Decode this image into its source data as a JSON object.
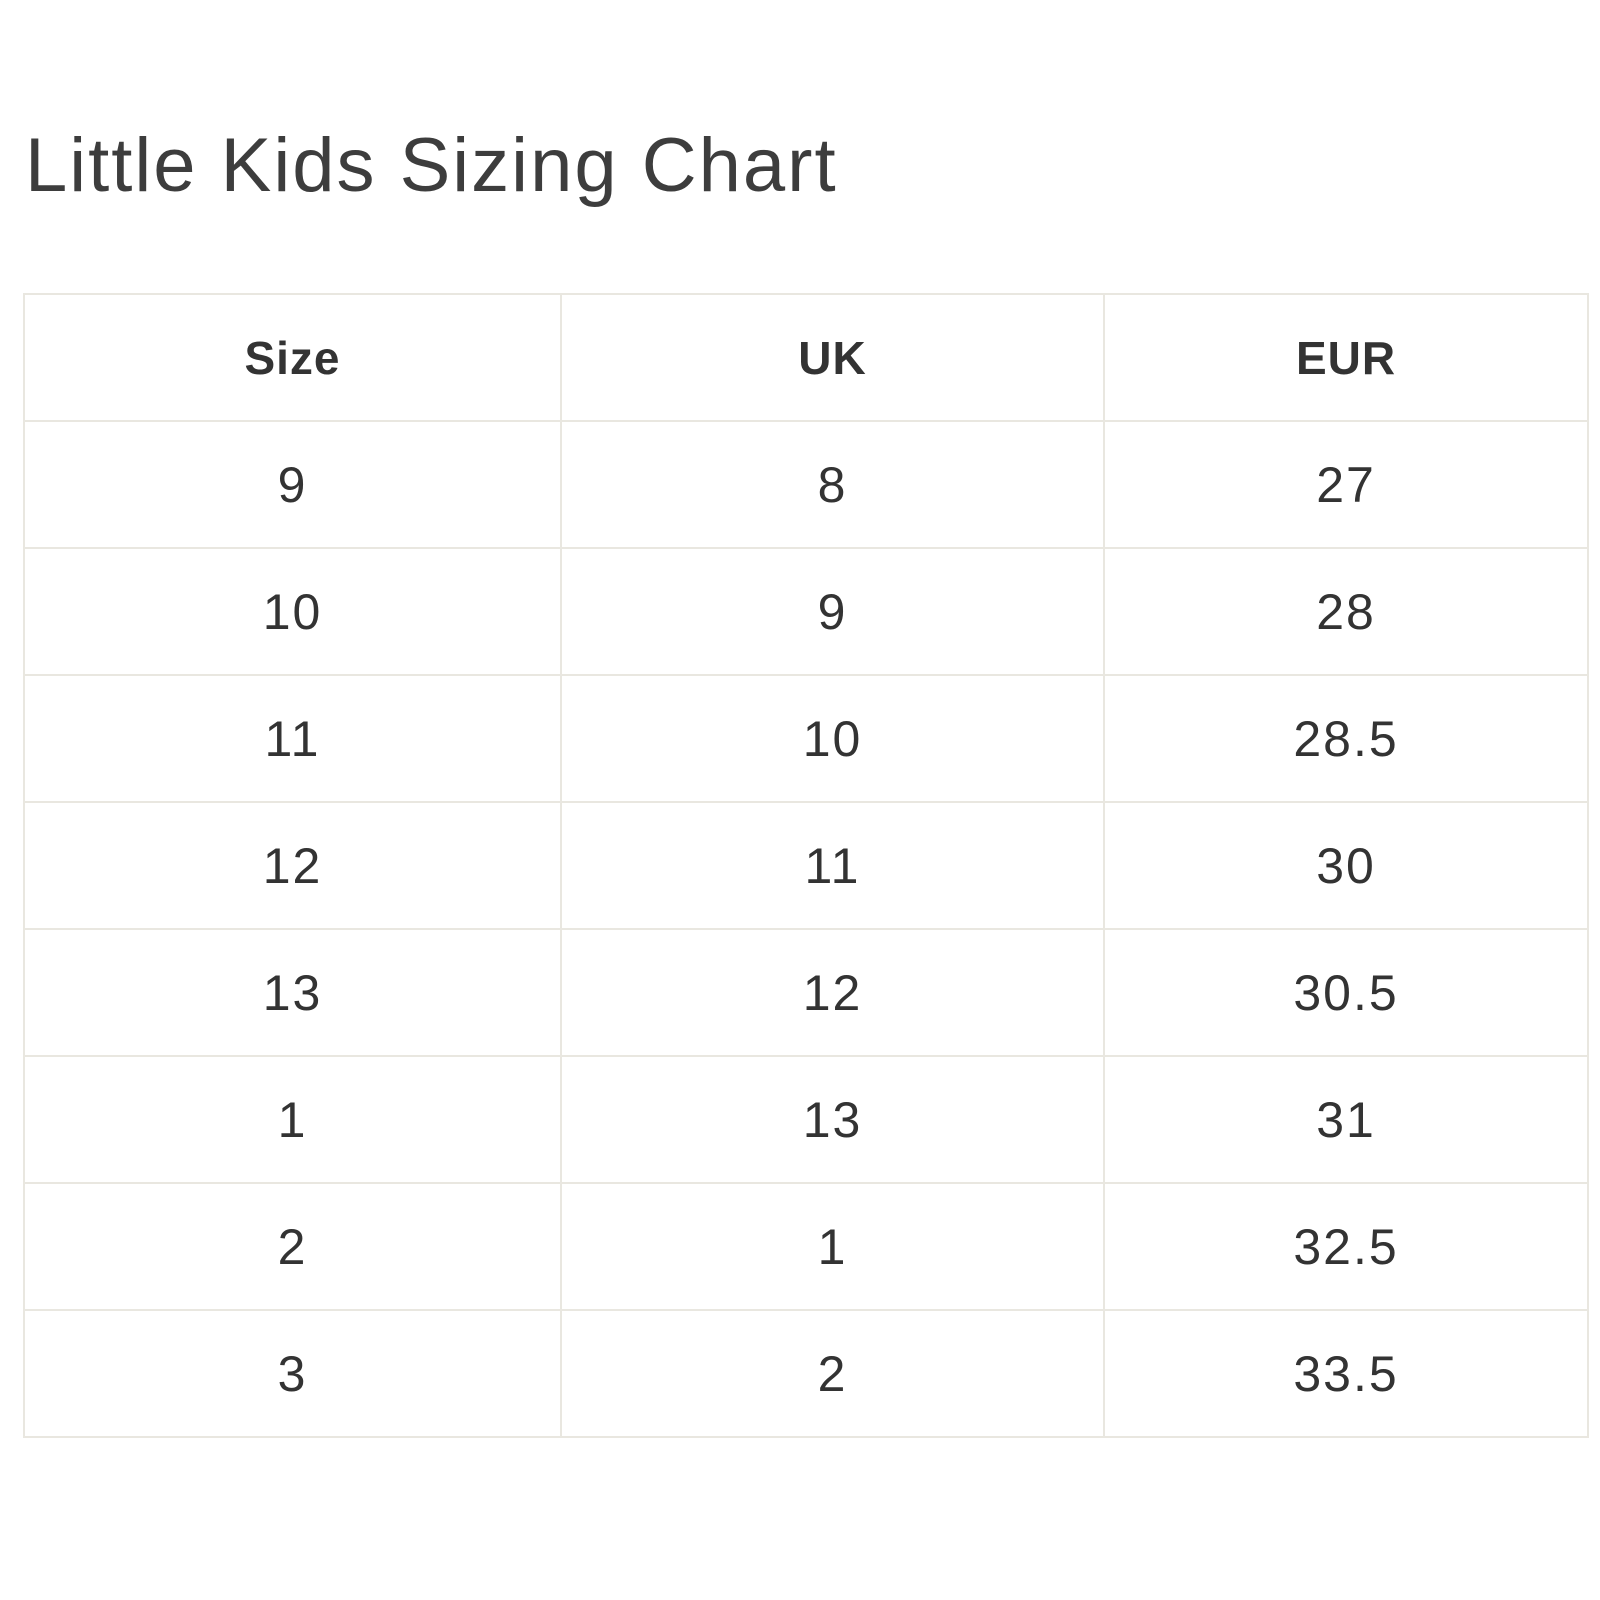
{
  "page": {
    "title": "Little Kids Sizing Chart",
    "background_color": "#ffffff",
    "text_color": "#333333",
    "title_color": "#3d3d3d",
    "border_color": "#e9e7e0"
  },
  "table": {
    "headers": [
      "Size",
      "UK",
      "EUR"
    ],
    "rows": [
      [
        "9",
        "8",
        "27"
      ],
      [
        "10",
        "9",
        "28"
      ],
      [
        "11",
        "10",
        "28.5"
      ],
      [
        "12",
        "11",
        "30"
      ],
      [
        "13",
        "12",
        "30.5"
      ],
      [
        "1",
        "13",
        "31"
      ],
      [
        "2",
        "1",
        "32.5"
      ],
      [
        "3",
        "2",
        "33.5"
      ]
    ]
  },
  "chart_data": {
    "type": "table",
    "title": "Little Kids Sizing Chart",
    "columns": [
      "Size",
      "UK",
      "EUR"
    ],
    "rows": [
      [
        9,
        8,
        27
      ],
      [
        10,
        9,
        28
      ],
      [
        11,
        10,
        28.5
      ],
      [
        12,
        11,
        30
      ],
      [
        13,
        12,
        30.5
      ],
      [
        1,
        13,
        31
      ],
      [
        2,
        1,
        32.5
      ],
      [
        3,
        2,
        33.5
      ]
    ]
  }
}
